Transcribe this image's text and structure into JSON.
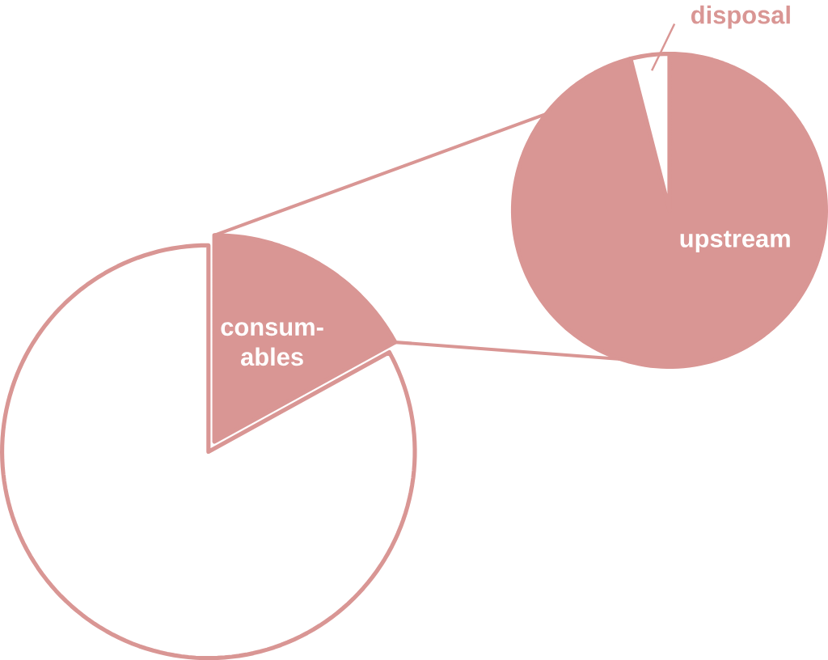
{
  "chart_data": [
    {
      "type": "pie",
      "categories": [
        "consum- ables",
        null
      ],
      "values": [
        17,
        83
      ],
      "colors": [
        "#d99694",
        "#ffffff"
      ]
    },
    {
      "type": "pie",
      "categories": [
        "upstream",
        "disposal"
      ],
      "values": [
        96,
        4
      ],
      "colors": [
        "#d99694",
        "#ffffff"
      ]
    }
  ]
}
